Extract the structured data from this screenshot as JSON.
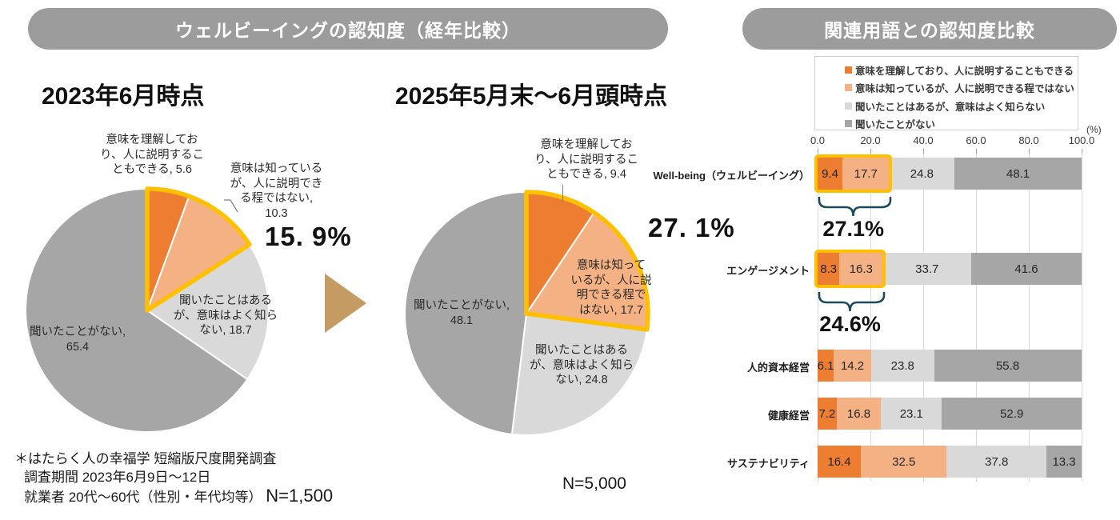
{
  "headers": {
    "left": "ウェルビーイングの認知度（経年比較）",
    "right": "関連用語との認知度比較"
  },
  "left_section": {
    "title_2023": "2023年6月時点",
    "title_2025": "2025年5月末～6月頭時点",
    "pie1": {
      "seg0": "意味を理解してお\nり、人に説明するこ\nともできる, 5.6",
      "seg1": "意味は知っている\nが、人に説明でき\nる程ではない,\n10.3",
      "seg2": "聞いたことはある\nが、意味はよく知ら\nない, 18.7",
      "seg3": "聞いたことがない,\n65.4",
      "pct": "15. 9%"
    },
    "pie2": {
      "seg0": "意味を理解してお\nり、人に説明するこ\nともできる, 9.4",
      "seg1": "意味は知って\nいるが、人に説\n明できる程で\nはない, 17.7",
      "seg2": "聞いたことはある\nが、意味はよく知ら\nない, 24.8",
      "seg3": "聞いたことがない,\n48.1",
      "pct": "27. 1%"
    },
    "footnote": {
      "line1": "＊はたらく人の幸福学 短縮版尺度開発調査",
      "line2": "調査期間  2023年6月9日～12日",
      "line3": "就業者  20代～60代（性別・年代均等）",
      "n": "N=1,500"
    },
    "n_2025": "N=5,000"
  },
  "right_section": {
    "legend": [
      "意味を理解しており、人に説明することもできる",
      "意味は知っているが、人に説明できる程ではない",
      "聞いたことはあるが、意味はよく知らない",
      "聞いたことがない"
    ],
    "axis_ticks": [
      "0.0",
      "20.0",
      "40.0",
      "60.0",
      "80.0",
      "100.0"
    ],
    "axis_unit": "(%)"
  },
  "colors": {
    "understand": "#ED7D31",
    "know": "#F4B183",
    "heard": "#D9D9D9",
    "never": "#A6A6A6",
    "highlight": "#FFC000",
    "header_bg": "#9C9C9C",
    "bracket": "#1C4B5E",
    "arrow": "#C49B63",
    "gridline": "#DBDBDB"
  },
  "chart_data": [
    {
      "type": "pie",
      "title": "2023年6月時点",
      "labels": [
        "意味を理解しており、人に説明することもできる",
        "意味は知っているが、人に説明できる程ではない",
        "聞いたことはあるが、意味はよく知らない",
        "聞いたことがない"
      ],
      "values": [
        5.6,
        10.3,
        18.7,
        65.4
      ],
      "highlight_annotation": "15.9%",
      "sample": "N=1,500",
      "start_angle": "top",
      "direction": "clockwise"
    },
    {
      "type": "pie",
      "title": "2025年5月末～6月頭時点",
      "labels": [
        "意味を理解しており、人に説明することもできる",
        "意味は知っているが、人に説明できる程ではない",
        "聞いたことはあるが、意味はよく知らない",
        "聞いたことがない"
      ],
      "values": [
        9.4,
        17.7,
        24.8,
        48.1
      ],
      "highlight_annotation": "27.1%",
      "sample": "N=5,000",
      "start_angle": "top",
      "direction": "clockwise"
    },
    {
      "type": "bar",
      "orientation": "horizontal",
      "stacked": true,
      "title": "関連用語との認知度比較",
      "categories": [
        "Well-being（ウェルビーイング）",
        "エンゲージメント",
        "人的資本経営",
        "健康経営",
        "サステナビリティ"
      ],
      "series": [
        {
          "name": "意味を理解しており、人に説明することもできる",
          "values": [
            9.4,
            8.3,
            6.1,
            7.2,
            16.4
          ]
        },
        {
          "name": "意味は知っているが、人に説明できる程ではない",
          "values": [
            17.7,
            16.3,
            14.2,
            16.8,
            32.5
          ]
        },
        {
          "name": "聞いたことはあるが、意味はよく知らない",
          "values": [
            24.8,
            33.7,
            23.8,
            23.1,
            37.8
          ]
        },
        {
          "name": "聞いたことがない",
          "values": [
            48.1,
            41.6,
            55.8,
            52.9,
            13.3
          ]
        }
      ],
      "xlim": [
        0,
        100
      ],
      "grid": true,
      "legend_position": "top",
      "annotations": [
        {
          "category": "Well-being（ウェルビーイング）",
          "label": "27.1%",
          "covers": "series 1 + series 2"
        },
        {
          "category": "エンゲージメント",
          "label": "24.6%",
          "covers": "series 1 + series 2"
        }
      ]
    }
  ]
}
